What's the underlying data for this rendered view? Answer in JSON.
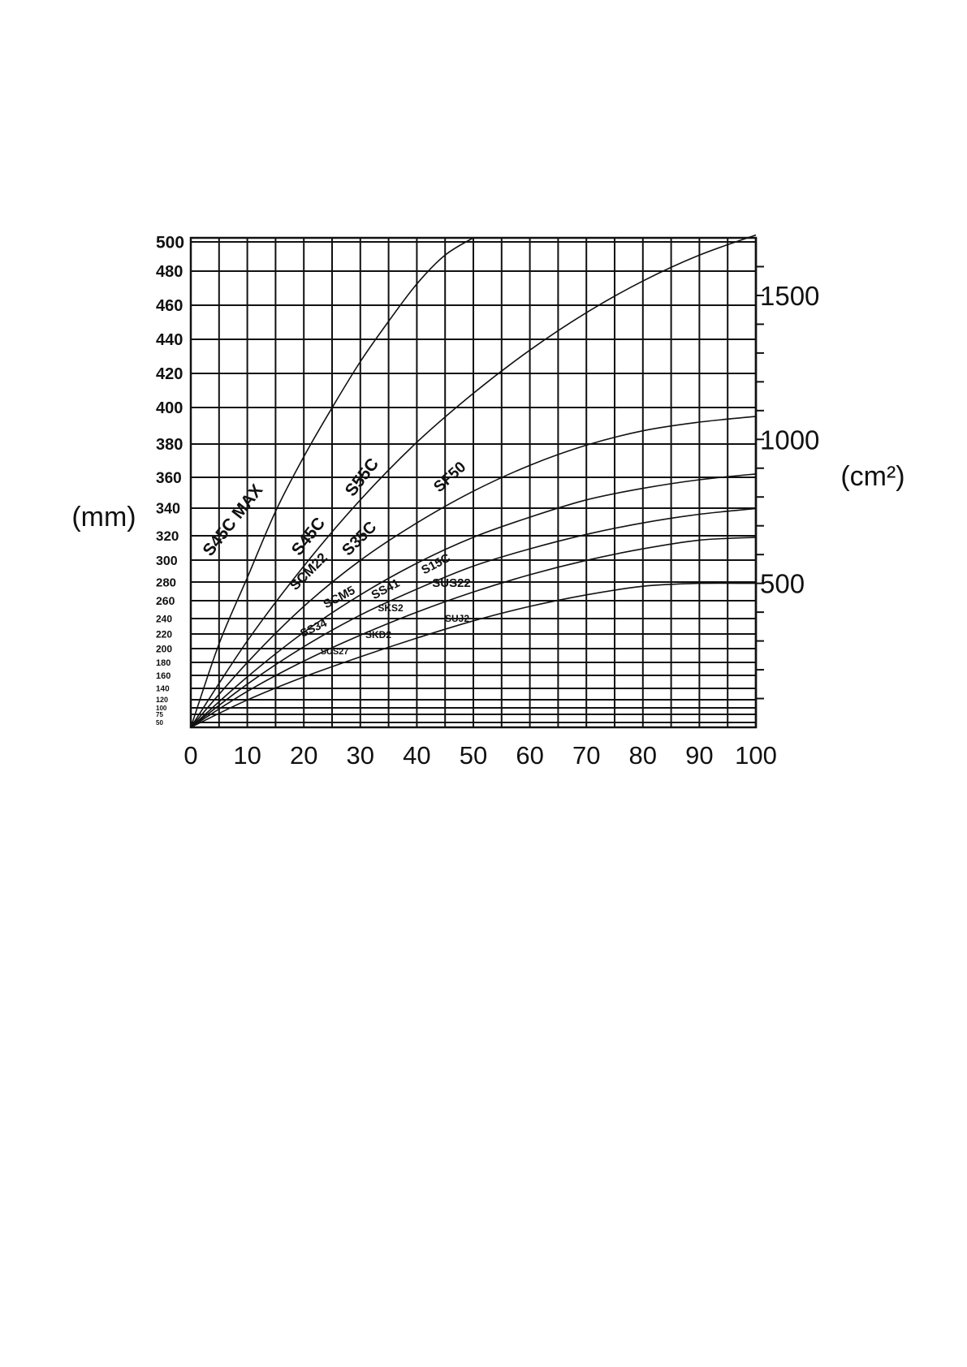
{
  "chart_data": {
    "type": "line",
    "x_ticks": [
      "0",
      "10",
      "20",
      "30",
      "40",
      "50",
      "60",
      "70",
      "80",
      "90",
      "100"
    ],
    "xlim": [
      0,
      100
    ],
    "left_axis": {
      "label": "(mm)",
      "tick_labels": [
        "50",
        "75",
        "100",
        "120",
        "140",
        "160",
        "180",
        "200",
        "220",
        "240",
        "260",
        "280",
        "300",
        "320",
        "340",
        "360",
        "380",
        "400",
        "420",
        "440",
        "460",
        "480",
        "500"
      ]
    },
    "right_axis": {
      "label": "(cm²)",
      "tick_labels": [
        "500",
        "1000",
        "1500"
      ],
      "ylim": [
        0,
        1700
      ]
    },
    "grid": true,
    "series": [
      {
        "x": [
          0,
          5,
          10,
          15,
          20,
          25,
          30,
          35,
          40,
          45,
          50
        ],
        "y": [
          0,
          290,
          520,
          750,
          940,
          1110,
          1270,
          1410,
          1540,
          1640,
          1700
        ]
      },
      {
        "x": [
          0,
          10,
          20,
          30,
          40,
          50,
          60,
          70,
          80,
          90,
          100
        ],
        "y": [
          0,
          300,
          560,
          790,
          990,
          1160,
          1310,
          1440,
          1550,
          1640,
          1710
        ]
      },
      {
        "x": [
          0,
          10,
          20,
          30,
          40,
          50,
          60,
          70,
          80,
          90,
          100
        ],
        "y": [
          0,
          225,
          420,
          580,
          710,
          820,
          910,
          980,
          1030,
          1060,
          1080
        ]
      },
      {
        "x": [
          0,
          10,
          20,
          30,
          40,
          50,
          60,
          70,
          80,
          90,
          100
        ],
        "y": [
          0,
          175,
          330,
          460,
          570,
          660,
          730,
          790,
          830,
          860,
          880
        ]
      },
      {
        "x": [
          0,
          10,
          20,
          30,
          40,
          50,
          60,
          70,
          80,
          90,
          100
        ],
        "y": [
          0,
          150,
          280,
          390,
          480,
          560,
          620,
          670,
          710,
          740,
          760
        ]
      },
      {
        "x": [
          0,
          10,
          20,
          30,
          40,
          50,
          60,
          70,
          80,
          90,
          100
        ],
        "y": [
          0,
          125,
          230,
          320,
          400,
          470,
          530,
          580,
          620,
          650,
          660
        ]
      },
      {
        "x": [
          0,
          10,
          20,
          30,
          40,
          50,
          60,
          70,
          80,
          90,
          100
        ],
        "y": [
          0,
          95,
          175,
          245,
          310,
          370,
          420,
          460,
          490,
          500,
          500
        ]
      }
    ],
    "annotations": [
      "S45C MAX",
      "S45C",
      "SCM22",
      "S55C",
      "S35C",
      "SF50",
      "SCM5",
      "SS41",
      "S15C",
      "SUS22",
      "SS34",
      "SKS2",
      "SKD2",
      "SUJ2",
      "SUS27"
    ]
  }
}
